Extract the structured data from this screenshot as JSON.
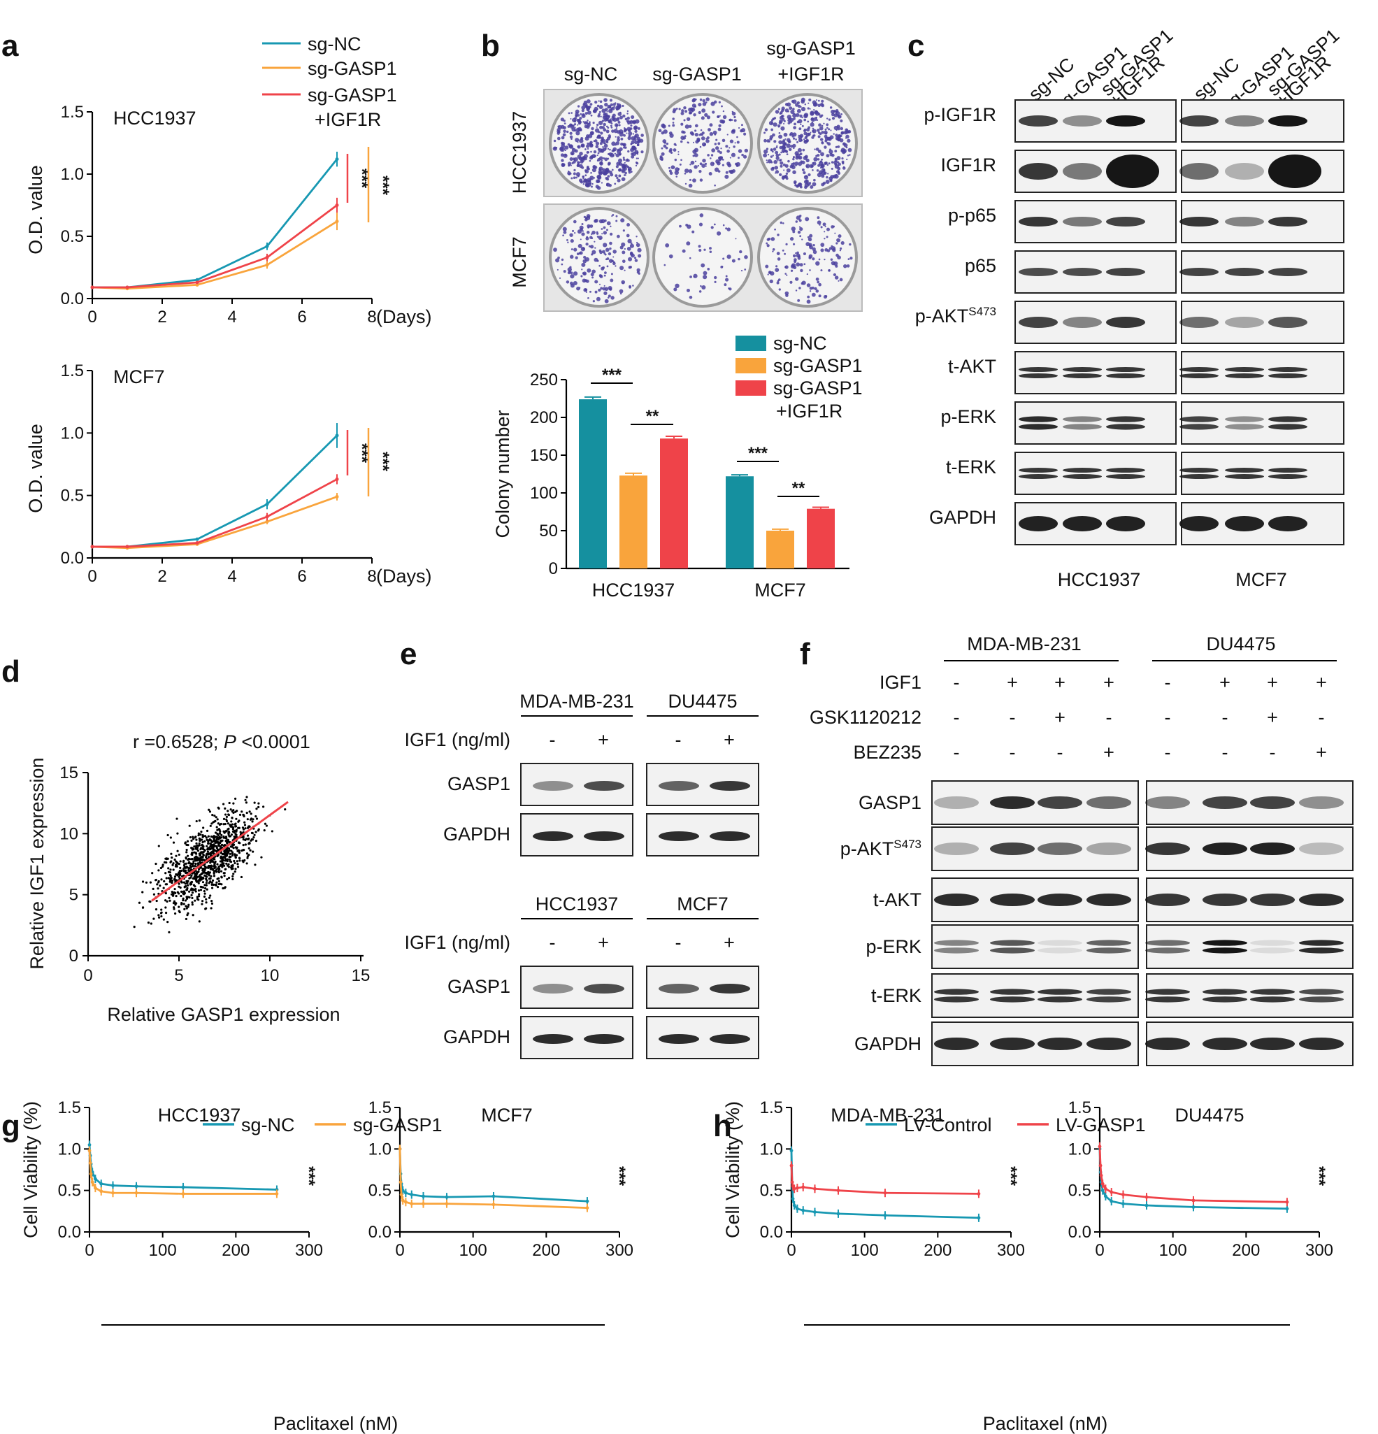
{
  "colors": {
    "teal": "#1798b2",
    "orange": "#f9a43c",
    "red": "#ef4349",
    "tealBar": "#15909f",
    "blot": "#161616"
  },
  "panels": {
    "a": "a",
    "b": "b",
    "c": "c",
    "d": "d",
    "e": "e",
    "f": "f",
    "g": "g",
    "h": "h"
  },
  "a": {
    "legend": [
      "sg-NC",
      "sg-GASP1",
      "sg-GASP1",
      "+IGF1R"
    ],
    "ylabel": "O.D. value",
    "days_label": "(Days)",
    "yticks": [
      "0.0",
      "0.5",
      "1.0",
      "1.5"
    ],
    "xticks": [
      "0",
      "2",
      "4",
      "6",
      "8"
    ],
    "sig": "***",
    "charts": [
      {
        "title": "HCC1937"
      },
      {
        "title": "MCF7"
      }
    ]
  },
  "b": {
    "cols": [
      "sg-NC",
      "sg-GASP1",
      "sg-GASP1",
      "+IGF1R"
    ],
    "rows": [
      "HCC1937",
      "MCF7"
    ],
    "legend": [
      "sg-NC",
      "sg-GASP1",
      "sg-GASP1",
      "+IGF1R"
    ],
    "ylabel": "Colony number",
    "yticks": [
      "0",
      "50",
      "100",
      "150",
      "200",
      "250"
    ],
    "sig": [
      "***",
      "**",
      "***",
      "**"
    ]
  },
  "c": {
    "lanes": [
      "sg-NC",
      "sg-GASP1",
      "sg-GASP1",
      "+IGF1R",
      "sg-NC",
      "sg-GASP1",
      "sg-GASP1",
      "+IGF1R"
    ],
    "rows": [
      "p-IGF1R",
      "IGF1R",
      "p-p65",
      "p65",
      "p-AKT",
      "t-AKT",
      "p-ERK",
      "t-ERK",
      "GAPDH"
    ],
    "sup": "S473",
    "groups": [
      "HCC1937",
      "MCF7"
    ]
  },
  "d": {
    "annot_r": "r =0.6528; ",
    "annot_p": "P",
    "annot_val": " <0.0001",
    "ylabel": "Relative IGF1 expression",
    "xlabel": "Relative GASP1 expression",
    "xticks": [
      "0",
      "5",
      "10",
      "15"
    ],
    "yticks": [
      "0",
      "5",
      "10",
      "15"
    ]
  },
  "e": {
    "groups": [
      "MDA-MB-231",
      "DU4475",
      "HCC1937",
      "MCF7"
    ],
    "treat": "IGF1 (ng/ml)",
    "signs": [
      "-",
      "+"
    ],
    "rows": [
      "GASP1",
      "GAPDH"
    ]
  },
  "f": {
    "groups": [
      "MDA-MB-231",
      "DU4475"
    ],
    "treat_labels": [
      "IGF1",
      "GSK1120212",
      "BEZ235"
    ],
    "signs": {
      "IGF1": [
        "-",
        "+",
        "+",
        "+",
        "-",
        "+",
        "+",
        "+"
      ],
      "GSK1120212": [
        "-",
        "-",
        "+",
        "-",
        "-",
        "-",
        "+",
        "-"
      ],
      "BEZ235": [
        "-",
        "-",
        "-",
        "+",
        "-",
        "-",
        "-",
        "+"
      ]
    },
    "rows": [
      "GASP1",
      "p-AKT",
      "t-AKT",
      "p-ERK",
      "t-ERK",
      "GAPDH"
    ],
    "sup": "S473"
  },
  "g": {
    "legend": [
      "sg-NC",
      "sg-GASP1"
    ],
    "titles": [
      "HCC1937",
      "MCF7"
    ],
    "ylabel": "Cell Viability (%)",
    "xlabel": "Paclitaxel (nM)",
    "yticks": [
      "0.0",
      "0.5",
      "1.0",
      "1.5"
    ],
    "xticks": [
      "0",
      "100",
      "200",
      "300"
    ],
    "sig": "***"
  },
  "h": {
    "legend": [
      "LV-Control",
      "LV-GASP1"
    ],
    "titles": [
      "MDA-MB-231",
      "DU4475"
    ],
    "ylabel": "Cell Viability (%)",
    "xlabel": "Paclitaxel (nM)",
    "yticks": [
      "0.0",
      "0.5",
      "1.0",
      "1.5"
    ],
    "xticks": [
      "0",
      "100",
      "200",
      "300"
    ],
    "sig": "***"
  },
  "chart_data": [
    {
      "id": "a-HCC1937",
      "type": "line",
      "title": "HCC1937",
      "xlabel": "(Days)",
      "ylabel": "O.D. value",
      "xlim": [
        0,
        8
      ],
      "ylim": [
        0,
        1.5
      ],
      "x": [
        0,
        1,
        3,
        5,
        7
      ],
      "series": [
        {
          "name": "sg-NC",
          "values": [
            0.09,
            0.09,
            0.15,
            0.42,
            1.12
          ],
          "err": [
            0.01,
            0.01,
            0.01,
            0.03,
            0.06
          ]
        },
        {
          "name": "sg-GASP1",
          "values": [
            0.09,
            0.08,
            0.11,
            0.27,
            0.62
          ],
          "err": [
            0.01,
            0.01,
            0.01,
            0.03,
            0.07
          ]
        },
        {
          "name": "sg-GASP1+IGF1R",
          "values": [
            0.09,
            0.09,
            0.13,
            0.33,
            0.75
          ],
          "err": [
            0.01,
            0.01,
            0.01,
            0.03,
            0.06
          ]
        }
      ]
    },
    {
      "id": "a-MCF7",
      "type": "line",
      "title": "MCF7",
      "xlabel": "(Days)",
      "ylabel": "O.D. value",
      "xlim": [
        0,
        8
      ],
      "ylim": [
        0,
        1.5
      ],
      "x": [
        0,
        1,
        3,
        5,
        7
      ],
      "series": [
        {
          "name": "sg-NC",
          "values": [
            0.09,
            0.09,
            0.15,
            0.43,
            0.98
          ],
          "err": [
            0.01,
            0.01,
            0.01,
            0.04,
            0.1
          ]
        },
        {
          "name": "sg-GASP1",
          "values": [
            0.09,
            0.08,
            0.11,
            0.29,
            0.49
          ],
          "err": [
            0.01,
            0.01,
            0.01,
            0.02,
            0.03
          ]
        },
        {
          "name": "sg-GASP1+IGF1R",
          "values": [
            0.09,
            0.09,
            0.12,
            0.33,
            0.63
          ],
          "err": [
            0.01,
            0.01,
            0.01,
            0.03,
            0.04
          ]
        }
      ]
    },
    {
      "id": "b-colony",
      "type": "bar",
      "ylabel": "Colony number",
      "ylim": [
        0,
        250
      ],
      "categories": [
        "HCC1937",
        "MCF7"
      ],
      "series": [
        {
          "name": "sg-NC",
          "values": [
            224,
            122
          ],
          "err": [
            3,
            2
          ]
        },
        {
          "name": "sg-GASP1",
          "values": [
            123,
            50
          ],
          "err": [
            3,
            2
          ]
        },
        {
          "name": "sg-GASP1+IGF1R",
          "values": [
            172,
            79
          ],
          "err": [
            3,
            2
          ]
        }
      ]
    },
    {
      "id": "d-scatter",
      "type": "scatter",
      "xlabel": "Relative GASP1 expression",
      "ylabel": "Relative IGF1 expression",
      "xlim": [
        0,
        15
      ],
      "ylim": [
        0,
        15
      ],
      "fit": {
        "x": [
          3.5,
          11
        ],
        "y": [
          4.5,
          12.6
        ]
      },
      "n_points": 1100,
      "x_mean": 6.6,
      "x_sd": 1.35,
      "y_mean": 7.9,
      "y_sd": 1.95,
      "r": 0.6528
    },
    {
      "id": "g-HCC1937",
      "type": "line",
      "title": "HCC1937",
      "xlabel": "Paclitaxel (nM)",
      "ylabel": "Cell Viability (%)",
      "xlim": [
        0,
        300
      ],
      "ylim": [
        0,
        1.5
      ],
      "x": [
        0,
        1,
        2,
        4,
        8,
        16,
        32,
        64,
        128,
        256
      ],
      "series": [
        {
          "name": "sg-NC",
          "values": [
            1.05,
            0.92,
            0.82,
            0.72,
            0.64,
            0.58,
            0.56,
            0.55,
            0.54,
            0.51
          ]
        },
        {
          "name": "sg-GASP1",
          "values": [
            0.98,
            0.83,
            0.7,
            0.6,
            0.53,
            0.49,
            0.47,
            0.47,
            0.46,
            0.46
          ]
        }
      ]
    },
    {
      "id": "g-MCF7",
      "type": "line",
      "title": "MCF7",
      "xlabel": "Paclitaxel (nM)",
      "ylabel": "Cell Viability (%)",
      "xlim": [
        0,
        300
      ],
      "ylim": [
        0,
        1.5
      ],
      "x": [
        0,
        1,
        2,
        4,
        8,
        16,
        32,
        64,
        128,
        256
      ],
      "series": [
        {
          "name": "sg-NC",
          "values": [
            1.0,
            0.7,
            0.58,
            0.5,
            0.47,
            0.45,
            0.43,
            0.42,
            0.43,
            0.37
          ]
        },
        {
          "name": "sg-GASP1",
          "values": [
            1.0,
            0.6,
            0.45,
            0.38,
            0.36,
            0.34,
            0.34,
            0.34,
            0.33,
            0.29
          ]
        }
      ]
    },
    {
      "id": "h-MDA-MB-231",
      "type": "line",
      "title": "MDA-MB-231",
      "xlabel": "Paclitaxel (nM)",
      "ylabel": "Cell Viability (%)",
      "xlim": [
        0,
        300
      ],
      "ylim": [
        0,
        1.5
      ],
      "x": [
        0,
        1,
        2,
        4,
        8,
        16,
        32,
        64,
        128,
        256
      ],
      "series": [
        {
          "name": "LV-Control",
          "values": [
            0.98,
            0.6,
            0.4,
            0.32,
            0.28,
            0.26,
            0.24,
            0.22,
            0.2,
            0.17
          ]
        },
        {
          "name": "LV-GASP1",
          "values": [
            0.8,
            0.6,
            0.55,
            0.52,
            0.53,
            0.54,
            0.52,
            0.5,
            0.47,
            0.46
          ]
        }
      ]
    },
    {
      "id": "h-DU4475",
      "type": "line",
      "title": "DU4475",
      "xlabel": "Paclitaxel (nM)",
      "ylabel": "Cell Viability (%)",
      "xlim": [
        0,
        300
      ],
      "ylim": [
        0,
        1.5
      ],
      "x": [
        0,
        1,
        2,
        4,
        8,
        16,
        32,
        64,
        128,
        256
      ],
      "series": [
        {
          "name": "LV-Control",
          "values": [
            1.0,
            0.72,
            0.6,
            0.5,
            0.43,
            0.37,
            0.34,
            0.32,
            0.3,
            0.28
          ]
        },
        {
          "name": "LV-GASP1",
          "values": [
            1.03,
            0.8,
            0.68,
            0.58,
            0.52,
            0.48,
            0.45,
            0.42,
            0.38,
            0.36
          ]
        }
      ]
    }
  ]
}
